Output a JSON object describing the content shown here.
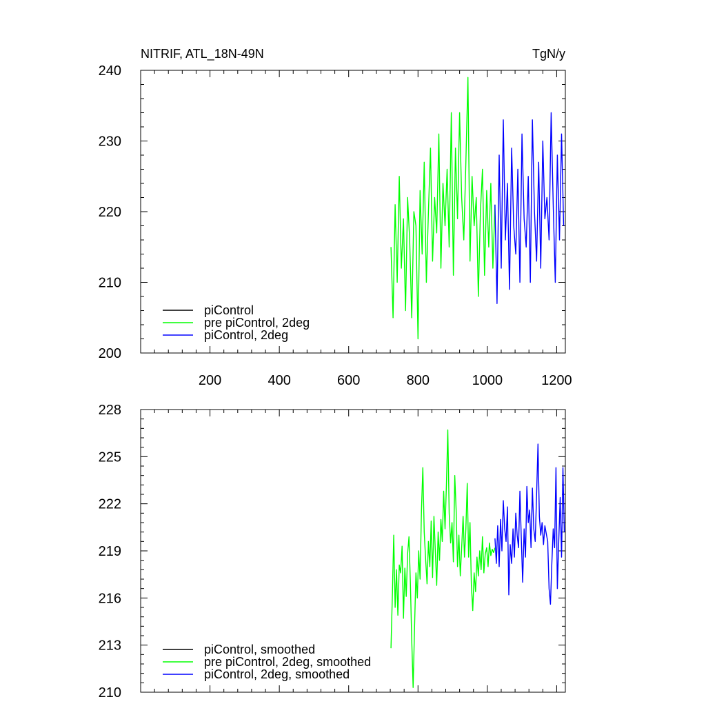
{
  "chart_data": [
    {
      "type": "line",
      "title": "NITRIF, ATL_18N-49N",
      "units": "TgN/y",
      "xlim": [
        0,
        1225
      ],
      "ylim": [
        200,
        240
      ],
      "x_ticks": [
        200,
        400,
        600,
        800,
        1000,
        1200
      ],
      "y_ticks": [
        200,
        210,
        220,
        230,
        240
      ],
      "legend_position": "bottom-left",
      "series": [
        {
          "name": "piControl",
          "color": "#000000",
          "x": [],
          "values": []
        },
        {
          "name": "pre piControl, 2deg",
          "color": "#00ff00",
          "x": [
            722,
            728,
            734,
            740,
            746,
            752,
            758,
            764,
            770,
            776,
            782,
            788,
            794,
            800,
            806,
            812,
            818,
            824,
            830,
            836,
            842,
            848,
            854,
            860,
            866,
            872,
            878,
            884,
            890,
            896,
            902,
            908,
            914,
            920,
            926,
            932,
            938,
            944,
            950,
            956,
            962,
            968,
            974,
            980,
            986,
            992,
            998,
            1004,
            1010,
            1016,
            1022
          ],
          "values": [
            215,
            205,
            221,
            210,
            225,
            212,
            219,
            206,
            222,
            216,
            205,
            220,
            218,
            202,
            223,
            214,
            227,
            210,
            220,
            229,
            213,
            222,
            217,
            231,
            212,
            224,
            218,
            226,
            215,
            234,
            211,
            229,
            219,
            234,
            222,
            216,
            227,
            239,
            213,
            225,
            218,
            222,
            208,
            220,
            226,
            211,
            223,
            215,
            224,
            212,
            221
          ]
        },
        {
          "name": "piControl, 2deg",
          "color": "#0000ff",
          "x": [
            1022,
            1028,
            1034,
            1040,
            1046,
            1052,
            1058,
            1064,
            1070,
            1076,
            1082,
            1088,
            1094,
            1100,
            1106,
            1112,
            1118,
            1124,
            1130,
            1136,
            1142,
            1148,
            1154,
            1160,
            1166,
            1172,
            1178,
            1184,
            1190,
            1196,
            1202,
            1208,
            1214,
            1220
          ],
          "values": [
            221,
            207,
            228,
            212,
            233,
            216,
            224,
            209,
            229,
            218,
            214,
            226,
            210,
            231,
            219,
            215,
            225,
            210,
            233,
            220,
            213,
            227,
            212,
            230,
            219,
            222,
            216,
            234,
            221,
            210,
            228,
            216,
            231,
            218
          ]
        }
      ]
    },
    {
      "type": "line",
      "title": "",
      "xlim": [
        0,
        1225
      ],
      "ylim": [
        210,
        228
      ],
      "y_ticks": [
        210,
        213,
        216,
        219,
        222,
        225,
        228
      ],
      "legend_position": "bottom-left",
      "series": [
        {
          "name": "piControl, smoothed",
          "color": "#000000",
          "x": [],
          "values": []
        },
        {
          "name": "pre piControl, 2deg, smoothed",
          "color": "#00ff00",
          "x": [
            722,
            726,
            730,
            734,
            738,
            742,
            746,
            750,
            754,
            758,
            762,
            766,
            770,
            774,
            778,
            782,
            786,
            790,
            794,
            798,
            802,
            806,
            810,
            814,
            818,
            822,
            826,
            830,
            834,
            838,
            842,
            846,
            850,
            854,
            858,
            862,
            866,
            870,
            874,
            878,
            882,
            886,
            890,
            894,
            898,
            902,
            906,
            910,
            914,
            918,
            922,
            926,
            930,
            934,
            938,
            942,
            946,
            950,
            954,
            958,
            962,
            966,
            970,
            974,
            978,
            982,
            986,
            990,
            994,
            998,
            1002,
            1006,
            1010,
            1014,
            1018,
            1022
          ],
          "values": [
            212.8,
            216.2,
            220.0,
            215.4,
            217.8,
            214.9,
            218.1,
            217.6,
            219.3,
            214.7,
            217.9,
            216.1,
            218.8,
            219.9,
            217.0,
            213.3,
            210.3,
            214.2,
            217.6,
            216.0,
            219.0,
            217.2,
            221.6,
            224.3,
            220.2,
            218.5,
            216.9,
            219.6,
            218.0,
            220.9,
            217.3,
            221.2,
            219.0,
            216.8,
            220.2,
            218.4,
            221.0,
            219.6,
            222.8,
            220.4,
            223.2,
            226.7,
            221.4,
            219.5,
            220.8,
            218.3,
            223.8,
            221.6,
            218.0,
            220.0,
            217.4,
            219.2,
            221.2,
            218.6,
            220.4,
            223.3,
            218.6,
            220.8,
            216.8,
            215.2,
            217.6,
            216.4,
            218.6,
            217.4,
            219.0,
            217.8,
            219.9,
            217.6,
            218.8,
            219.2,
            218.0,
            219.5,
            218.7,
            219.1,
            218.9,
            219.2
          ]
        },
        {
          "name": "piControl, 2deg, smoothed",
          "color": "#0000ff",
          "x": [
            1022,
            1026,
            1030,
            1034,
            1038,
            1042,
            1046,
            1050,
            1054,
            1058,
            1062,
            1066,
            1070,
            1074,
            1078,
            1082,
            1086,
            1090,
            1094,
            1098,
            1102,
            1106,
            1110,
            1114,
            1118,
            1122,
            1126,
            1130,
            1134,
            1138,
            1142,
            1146,
            1150,
            1154,
            1158,
            1162,
            1166,
            1170,
            1174,
            1178,
            1182,
            1186,
            1190,
            1194,
            1198,
            1202,
            1206,
            1210,
            1214,
            1218,
            1222
          ],
          "values": [
            219.8,
            218.2,
            220.6,
            218.0,
            221.0,
            219.0,
            222.2,
            220.4,
            219.6,
            221.8,
            216.2,
            219.4,
            218.2,
            220.4,
            218.6,
            221.4,
            220.0,
            219.2,
            222.8,
            219.8,
            217.0,
            220.4,
            218.6,
            223.1,
            220.8,
            221.6,
            219.2,
            223.0,
            220.4,
            219.6,
            222.6,
            225.8,
            221.2,
            220.0,
            220.8,
            219.4,
            220.6,
            220.1,
            219.6,
            216.6,
            215.6,
            218.2,
            220.4,
            219.2,
            224.3,
            216.6,
            219.6,
            222.4,
            218.6,
            224.3,
            220.2
          ]
        }
      ]
    }
  ]
}
